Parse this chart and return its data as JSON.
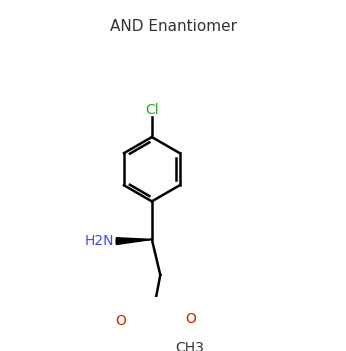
{
  "title": "AND Enantiomer",
  "title_color": "#333333",
  "title_fontsize": 11,
  "background_color": "#ffffff",
  "cl_label": "Cl",
  "cl_color": "#22aa22",
  "h2n_label": "H2N",
  "h2n_color": "#4444ff",
  "o_color": "#cc2200",
  "bond_color": "#000000",
  "ch3_label": "CH3",
  "o_label": "O",
  "figsize": [
    3.46,
    3.51
  ],
  "dpi": 100
}
